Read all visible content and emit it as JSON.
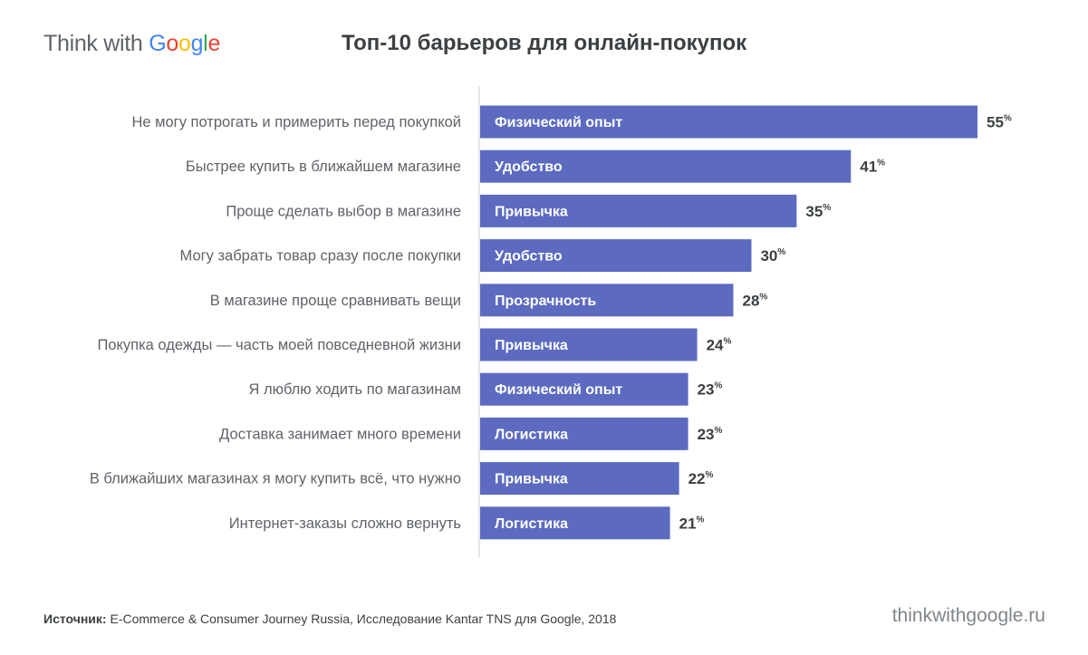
{
  "brand": {
    "prefix": "Think with ",
    "google_letters": [
      {
        "ch": "G",
        "color": "#4285F4"
      },
      {
        "ch": "o",
        "color": "#EA4335"
      },
      {
        "ch": "o",
        "color": "#FBBC05"
      },
      {
        "ch": "g",
        "color": "#4285F4"
      },
      {
        "ch": "l",
        "color": "#34A853"
      },
      {
        "ch": "e",
        "color": "#EA4335"
      }
    ]
  },
  "footer": {
    "source_label": "Источник:",
    "source_text": " E-Commerce & Consumer Journey Russia, Исследование Kantar TNS для Google, 2018",
    "url": "thinkwithgoogle.ru"
  },
  "colors": {
    "bar": "#5C6BC0",
    "bar_text": "#ffffff",
    "label_text": "#5f6368",
    "value_text": "#3c4043",
    "axis": "#cccccc"
  },
  "chart_data": {
    "type": "bar",
    "orientation": "horizontal",
    "title": "Топ-10 барьеров для онлайн-покупок",
    "xlim": [
      0,
      55
    ],
    "value_suffix": "%",
    "categories": [
      "Не могу потрогать и примерить перед покупкой",
      "Быстрее купить в ближайшем магазине",
      "Проще сделать выбор в магазине",
      "Могу забрать товар сразу после покупки",
      "В магазине проще сравнивать вещи",
      "Покупка одежды — часть моей повседневной жизни",
      "Я люблю ходить по магазинам",
      "Доставка занимает много времени",
      "В ближайших магазинах я могу купить всё, что нужно",
      "Интернет-заказы сложно вернуть"
    ],
    "values": [
      55,
      41,
      35,
      30,
      28,
      24,
      23,
      23,
      22,
      21
    ],
    "bar_labels": [
      "Физический опыт",
      "Удобство",
      "Привычка",
      "Удобство",
      "Прозрачность",
      "Привычка",
      "Физический опыт",
      "Логистика",
      "Привычка",
      "Логистика"
    ]
  }
}
